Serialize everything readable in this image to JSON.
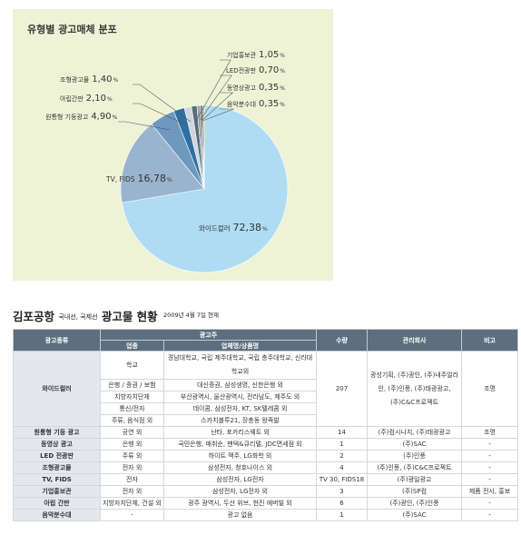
{
  "chart_data": {
    "type": "pie",
    "title": "유형별 광고매체 분포",
    "slices": [
      {
        "label": "와이드컬러",
        "value": 72.38,
        "value_text": "72,38",
        "unit": "%",
        "color": "#aedcf4"
      },
      {
        "label": "TV, FIDS",
        "value": 16.78,
        "value_text": "16,78",
        "unit": "%",
        "color": "#9ab4cf"
      },
      {
        "label": "원통형 기둥광고",
        "value": 4.9,
        "value_text": "4,90",
        "unit": "%",
        "color": "#6f98bf"
      },
      {
        "label": "아립간판",
        "value": 2.1,
        "value_text": "2,10",
        "unit": "%",
        "color": "#2f6fa3"
      },
      {
        "label": "조형광고물",
        "value": 1.4,
        "value_text": "1,40",
        "unit": "%",
        "color": "#cfd6de"
      },
      {
        "label": "기업홍보관",
        "value": 1.05,
        "value_text": "1,05",
        "unit": "%",
        "color": "#5a6b7a"
      },
      {
        "label": "LED전광판",
        "value": 0.7,
        "value_text": "0,70",
        "unit": "%",
        "color": "#9aa3ad"
      },
      {
        "label": "동영상광고",
        "value": 0.35,
        "value_text": "0,35",
        "unit": "%",
        "color": "#2b3a8c"
      },
      {
        "label": "음악분수대",
        "value": 0.35,
        "value_text": "0,35",
        "unit": "%",
        "color": "#c9a23a"
      }
    ]
  },
  "table": {
    "title": "김포공항",
    "title_sub": "국내선, 국제선",
    "title_tail": "광고물 현황",
    "date": "2009년 4월 7일 현재",
    "headers": {
      "type": "광고종류",
      "advertiser": "광고주",
      "industry": "업종",
      "company": "업체명/상품명",
      "count": "수량",
      "manager": "관리회사",
      "note": "비고"
    },
    "wide": {
      "type": "와이드컬러",
      "count": "207",
      "manager": "광성기획, (주)광인, (주)내주얼라인, (주)인풍, (주)태광광고, (주)C&C프로젝트",
      "note": "조명",
      "rows": [
        {
          "industry": "학교",
          "company": "경남대학교, 국립 제주대학교, 국립 충주대학교, 신라대학교외"
        },
        {
          "industry": "은행 / 증권 / 보험",
          "company": "대신증권, 삼성생명, 신한은행 외"
        },
        {
          "industry": "지방자치단체",
          "company": "부산광역시, 울산광역시, 전라남도, 제주도 외"
        },
        {
          "industry": "통신/전자",
          "company": "데이콤, 삼성전자, KT, SK텔레콤 외"
        },
        {
          "industry": "주류, 음식점 외",
          "company": "스카치블루21, 장충동 왕족발"
        }
      ]
    },
    "rows": [
      {
        "type": "원통형 기둥 광고",
        "industry": "공연 외",
        "company": "난타, 포카리스웨트 외",
        "count": "14",
        "manager": "(주)컴시나치, (주)태광광고",
        "note": "조명"
      },
      {
        "type": "동영상 광고",
        "industry": "은행 외",
        "company": "국민은행, 매취순, 팬텍&큐리텔, JDC면세점 외",
        "count": "1",
        "manager": "(주)SAC",
        "note": "-"
      },
      {
        "type": "LED 전광판",
        "industry": "주류 외",
        "company": "하이트 맥주, LG화학 외",
        "count": "2",
        "manager": "(주)인풍",
        "note": "-"
      },
      {
        "type": "조형광고물",
        "industry": "전자 외",
        "company": "삼성전자, 청호나이스 외",
        "count": "4",
        "manager": "(주)인풍, (주)C&C프로젝트",
        "note": "-"
      },
      {
        "type": "TV, FIDS",
        "industry": "전자",
        "company": "삼성전자, LG전자",
        "count": "TV 30, FIDS18",
        "manager": "(주)광일광고",
        "note": "-"
      },
      {
        "type": "기업홍보관",
        "industry": "전자 외",
        "company": "삼성전자, LG전자 외",
        "count": "3",
        "manager": "(주)SP컴",
        "note": "제품 전시, 홍보"
      },
      {
        "type": "아립 간판",
        "industry": "지방자치단체, 건설 외",
        "company": "광주 광역시, 두산 위브, 현진 에버빌 외",
        "count": "6",
        "manager": "(주)광인, (주)인풍",
        "note": "-"
      },
      {
        "type": "음악분수대",
        "industry": "-",
        "company": "광고 없음",
        "count": "1",
        "manager": "(주)SAC",
        "note": "-"
      }
    ]
  }
}
